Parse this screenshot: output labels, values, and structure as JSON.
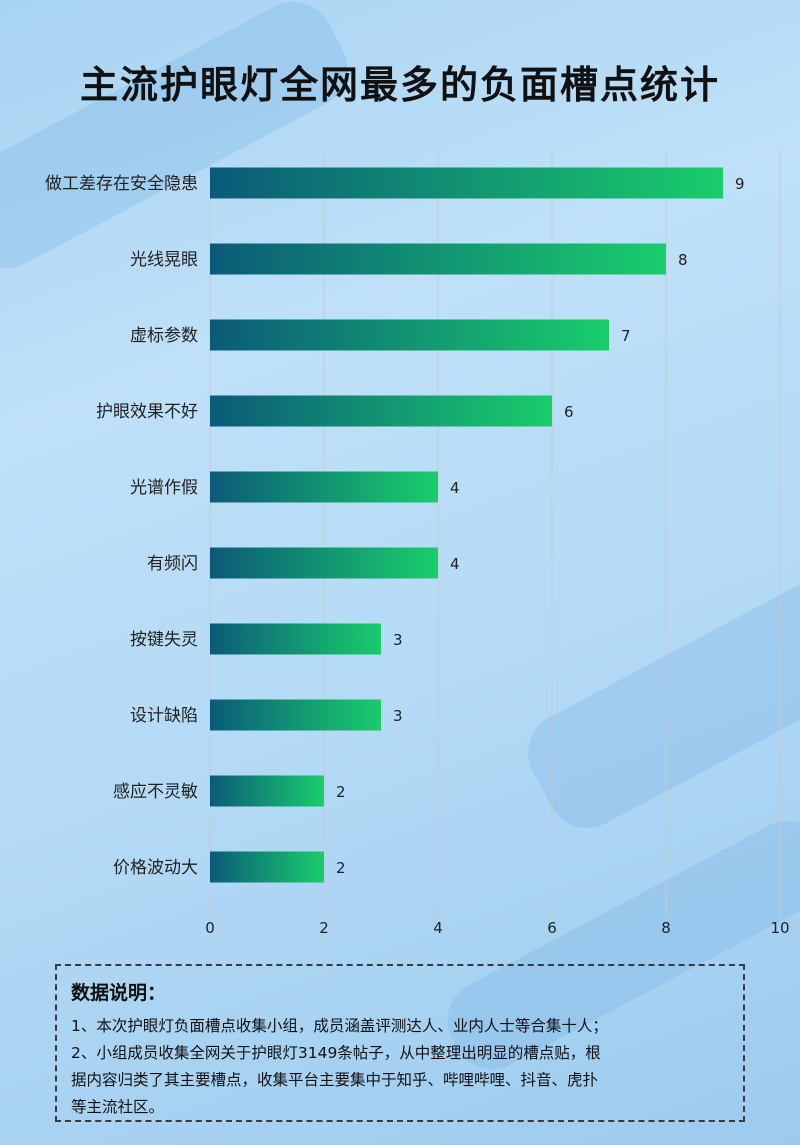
{
  "page": {
    "title": "主流护眼灯全网最多的负面槽点统计"
  },
  "colors": {
    "bar_start": "#0b5a78",
    "bar_end": "#19cd6c",
    "grid": "#c9c9c9",
    "text": "#222222"
  },
  "chart_data": {
    "type": "bar",
    "orientation": "horizontal",
    "title": "主流护眼灯全网最多的负面槽点统计",
    "categories": [
      "做工差存在安全隐患",
      "光线晃眼",
      "虚标参数",
      "护眼效果不好",
      "光谱作假",
      "有频闪",
      "按键失灵",
      "设计缺陷",
      "感应不灵敏",
      "价格波动大"
    ],
    "values": [
      9,
      8,
      7,
      6,
      4,
      4,
      3,
      3,
      2,
      2
    ],
    "xlim": [
      0,
      10
    ],
    "xticks": [
      0,
      2,
      4,
      6,
      8,
      10
    ],
    "grid": "vertical",
    "data_labels": true
  },
  "notes": {
    "title": "数据说明：",
    "lines": [
      "1、本次护眼灯负面槽点收集小组，成员涵盖评测达人、业内人士等合集十人；",
      "2、小组成员收集全网关于护眼灯3149条帖子，从中整理出明显的槽点贴，根",
      "据内容归类了其主要槽点，收集平台主要集中于知乎、哔哩哔哩、抖音、虎扑",
      "等主流社区。"
    ]
  }
}
